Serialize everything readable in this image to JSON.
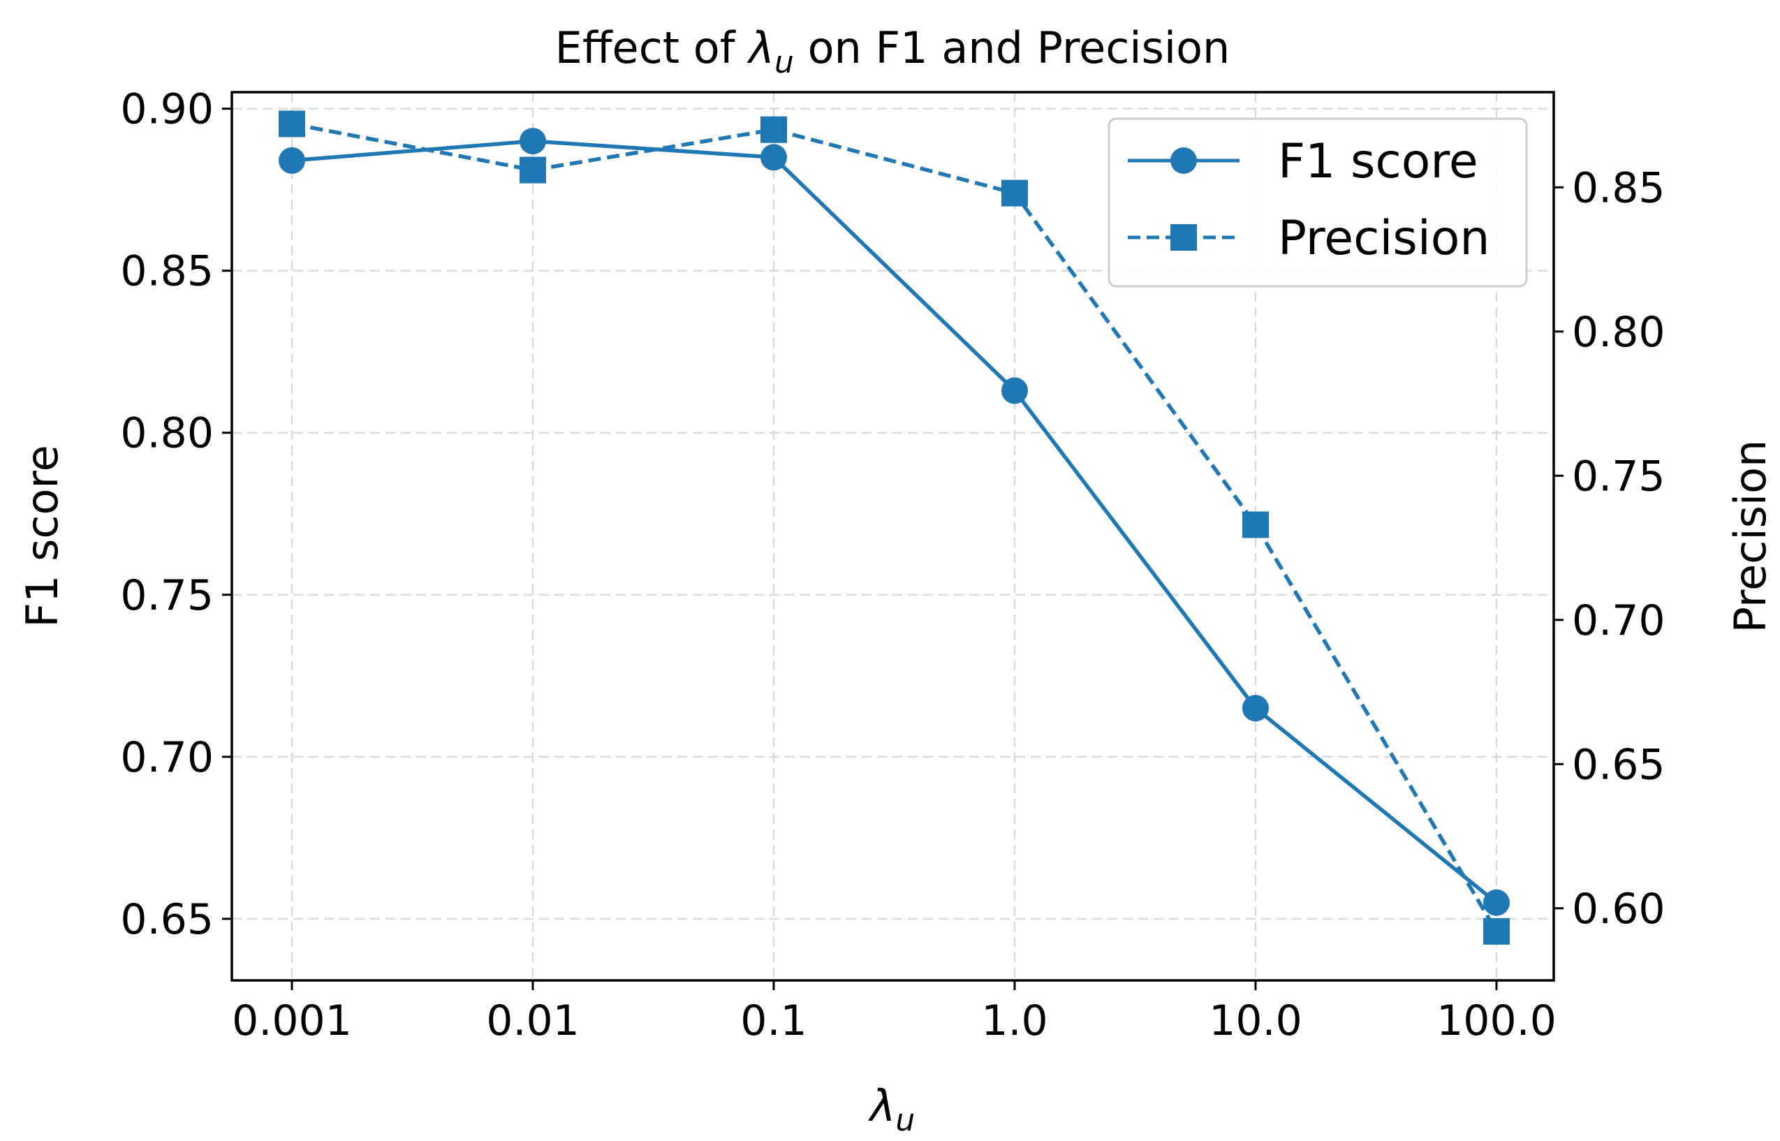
{
  "chart_data": {
    "type": "line",
    "title": {
      "prefix": "Effect of ",
      "symbol": "λ",
      "sub": "u",
      "suffix": " on F1 and Precision"
    },
    "xlabel": {
      "symbol": "λ",
      "sub": "u"
    },
    "ylabel_left": "F1 score",
    "ylabel_right": "Precision",
    "categories": [
      "0.001",
      "0.01",
      "0.1",
      "1.0",
      "10.0",
      "100.0"
    ],
    "ylim_left": [
      0.631,
      0.9051
    ],
    "ylim_right": [
      0.575,
      0.883
    ],
    "yticks_left": [
      "0.65",
      "0.70",
      "0.75",
      "0.80",
      "0.85",
      "0.90"
    ],
    "yticks_right": [
      "0.60",
      "0.65",
      "0.70",
      "0.75",
      "0.80",
      "0.85"
    ],
    "grid": true,
    "legend_position": "top-right",
    "colors": {
      "series": "#1f77b4",
      "grid": "#d9d9d9",
      "axis": "#000000"
    },
    "series": [
      {
        "name": "F1 score",
        "axis": "left",
        "marker": "circle",
        "linestyle": "solid",
        "values": [
          0.884,
          0.89,
          0.885,
          0.813,
          0.715,
          0.655
        ]
      },
      {
        "name": "Precision",
        "axis": "right",
        "marker": "square",
        "linestyle": "dashed",
        "values": [
          0.872,
          0.856,
          0.87,
          0.848,
          0.733,
          0.592
        ]
      }
    ]
  }
}
